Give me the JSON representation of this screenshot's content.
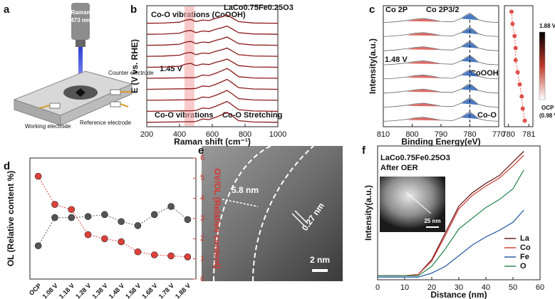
{
  "panel_labels": [
    "a",
    "b",
    "c",
    "d",
    "e",
    "f"
  ],
  "schematic": {
    "laser": [
      "Raman",
      "473 nm"
    ],
    "counter": "Counter electrode",
    "working": "Working electrode",
    "reference": "Reference electrode"
  },
  "micrograph": {
    "shell": "5.8 nm",
    "lattice": "0.27 nm",
    "scale": "2 nm"
  },
  "chart_data": [
    {
      "type": "line",
      "xlabel": "Raman shift (cm⁻¹)",
      "ylabel": "E (V vs. RHE)",
      "annotations": [
        "Co-O vibrations (CoOOH)",
        "LaCo0.75Fe0.25O3",
        "1.45 V",
        "Co-O vibrations",
        "Co-O Stretching"
      ],
      "highlight_x": [
        430,
        490
      ],
      "highlight_color": "#f4a6a6",
      "xlim": [
        200,
        1000
      ],
      "xticks": [
        200,
        400,
        600,
        800,
        1000
      ],
      "ylim": [
        0,
        11
      ],
      "color": "#8b1a1a",
      "x": [
        200,
        300,
        400,
        440,
        470,
        500,
        540,
        580,
        620,
        660,
        690,
        720,
        760,
        850,
        1000
      ],
      "series": [
        {
          "values": [
            0.4,
            0.42,
            0.44,
            0.45,
            0.45,
            0.48,
            0.7,
            0.65,
            0.85,
            1.1,
            1.3,
            1.0,
            0.55,
            0.43,
            0.4
          ]
        },
        {
          "values": [
            1.4,
            1.42,
            1.44,
            1.45,
            1.45,
            1.48,
            1.7,
            1.65,
            1.85,
            2.1,
            2.3,
            2.0,
            1.55,
            1.43,
            1.4
          ]
        },
        {
          "values": [
            2.4,
            2.42,
            2.44,
            2.45,
            2.45,
            2.48,
            2.7,
            2.65,
            2.85,
            3.1,
            3.3,
            3.0,
            2.55,
            2.43,
            2.4
          ]
        },
        {
          "values": [
            3.4,
            3.42,
            3.44,
            3.45,
            3.45,
            3.48,
            3.7,
            3.65,
            3.85,
            4.1,
            4.3,
            4.0,
            3.55,
            3.43,
            3.4
          ]
        },
        {
          "values": [
            4.4,
            4.42,
            4.44,
            4.45,
            4.45,
            4.48,
            4.7,
            4.65,
            4.85,
            5.1,
            5.3,
            5.0,
            4.55,
            4.43,
            4.4
          ]
        },
        {
          "values": [
            5.4,
            5.42,
            5.5,
            5.7,
            5.75,
            5.55,
            5.7,
            5.65,
            5.85,
            6.0,
            6.15,
            5.9,
            5.55,
            5.43,
            5.4
          ]
        },
        {
          "values": [
            6.4,
            6.42,
            6.5,
            6.7,
            6.75,
            6.55,
            6.7,
            6.65,
            6.85,
            7.0,
            7.15,
            6.9,
            6.55,
            6.43,
            6.4
          ]
        },
        {
          "values": [
            7.4,
            7.42,
            7.5,
            7.7,
            7.75,
            7.55,
            7.7,
            7.65,
            7.85,
            8.0,
            8.15,
            7.9,
            7.55,
            7.43,
            7.4
          ]
        },
        {
          "values": [
            8.4,
            8.42,
            8.5,
            8.7,
            8.75,
            8.55,
            8.7,
            8.65,
            8.85,
            9.0,
            9.15,
            8.9,
            8.55,
            8.43,
            8.4
          ]
        },
        {
          "values": [
            9.4,
            9.42,
            9.5,
            9.7,
            9.75,
            9.55,
            9.7,
            9.65,
            9.85,
            10.0,
            10.15,
            9.9,
            9.55,
            9.43,
            9.4
          ]
        }
      ]
    },
    {
      "type": "spectra",
      "xlabel": "Binding Energy(eV)",
      "ylabel": "Intensity(a.u.)",
      "annotations": [
        "Co 2P",
        "Co 2P3/2",
        "1.48 V",
        "CoOOH",
        "Co-O"
      ],
      "xlim": [
        810,
        770
      ],
      "xticks": [
        810,
        800,
        790,
        780,
        770
      ],
      "ylim": [
        0,
        9
      ],
      "color": "#666666",
      "dashed_x": 780,
      "x": [
        810,
        806,
        802,
        799,
        796,
        793,
        790,
        786,
        783,
        781,
        780,
        779,
        777,
        774,
        770
      ],
      "fit_x": [
        [
          802,
          799,
          796,
          793,
          790
        ],
        [
          783,
          781,
          780,
          779,
          777
        ]
      ],
      "fit_colors": [
        "#d9534f",
        "#2b63b8"
      ],
      "series": [
        {
          "values": [
            0.4,
            0.45,
            0.55,
            0.65,
            0.7,
            0.6,
            0.48,
            0.45,
            0.7,
            1.0,
            1.1,
            0.95,
            0.6,
            0.45,
            0.4
          ],
          "fits": [
            [
              0.5,
              0.62,
              0.68,
              0.58,
              0.46
            ],
            [
              0.68,
              0.95,
              1.05,
              0.92,
              0.58
            ]
          ]
        },
        {
          "values": [
            1.45,
            1.5,
            1.6,
            1.7,
            1.75,
            1.65,
            1.53,
            1.5,
            1.75,
            2.05,
            2.15,
            2.0,
            1.65,
            1.5,
            1.45
          ],
          "fits": [
            [
              1.55,
              1.67,
              1.73,
              1.63,
              1.51
            ],
            [
              1.73,
              2.0,
              2.1,
              1.97,
              1.63
            ]
          ]
        },
        {
          "values": [
            2.5,
            2.55,
            2.65,
            2.75,
            2.8,
            2.7,
            2.58,
            2.55,
            2.8,
            3.1,
            3.2,
            3.05,
            2.7,
            2.55,
            2.5
          ],
          "fits": [
            [
              2.6,
              2.72,
              2.78,
              2.68,
              2.56
            ],
            [
              2.78,
              3.05,
              3.15,
              3.02,
              2.68
            ]
          ]
        },
        {
          "values": [
            3.55,
            3.6,
            3.7,
            3.8,
            3.85,
            3.75,
            3.63,
            3.6,
            3.85,
            4.15,
            4.25,
            4.1,
            3.75,
            3.6,
            3.55
          ],
          "fits": [
            [
              3.65,
              3.77,
              3.83,
              3.73,
              3.61
            ],
            [
              3.83,
              4.1,
              4.2,
              4.07,
              3.73
            ]
          ]
        },
        {
          "values": [
            4.6,
            4.65,
            4.75,
            4.85,
            4.9,
            4.8,
            4.68,
            4.65,
            4.9,
            5.2,
            5.3,
            5.15,
            4.8,
            4.65,
            4.6
          ],
          "fits": [
            [
              4.7,
              4.82,
              4.88,
              4.78,
              4.66
            ],
            [
              4.88,
              5.15,
              5.25,
              5.12,
              4.78
            ]
          ]
        },
        {
          "values": [
            5.65,
            5.7,
            5.8,
            5.9,
            5.95,
            5.85,
            5.73,
            5.7,
            5.95,
            6.25,
            6.35,
            6.2,
            5.85,
            5.7,
            5.65
          ],
          "fits": [
            [
              5.75,
              5.87,
              5.93,
              5.83,
              5.71
            ],
            [
              5.93,
              6.2,
              6.3,
              6.17,
              5.83
            ]
          ]
        },
        {
          "values": [
            6.7,
            6.75,
            6.85,
            6.95,
            7.0,
            6.9,
            6.78,
            6.75,
            7.0,
            7.3,
            7.4,
            7.25,
            6.9,
            6.75,
            6.7
          ],
          "fits": [
            [
              6.8,
              6.92,
              6.98,
              6.88,
              6.76
            ],
            [
              6.98,
              7.25,
              7.35,
              7.22,
              6.88
            ]
          ]
        },
        {
          "values": [
            7.75,
            7.8,
            7.9,
            8.0,
            8.05,
            7.95,
            7.83,
            7.8,
            8.05,
            8.35,
            8.45,
            8.3,
            7.95,
            7.8,
            7.75
          ],
          "fits": [
            [
              7.85,
              7.97,
              8.03,
              7.93,
              7.81
            ],
            [
              8.03,
              8.3,
              8.4,
              8.27,
              7.93
            ]
          ]
        }
      ]
    },
    {
      "type": "scatter",
      "xlim": [
        779.8,
        781.2
      ],
      "xticks": [
        780,
        781
      ],
      "ylim": [
        0.5,
        10.5
      ],
      "color": "#e0504a",
      "x": [
        780.15,
        780.2,
        780.3,
        780.35,
        780.35,
        780.45,
        780.55,
        780.65,
        780.7,
        780.8
      ],
      "y": [
        10,
        9,
        8,
        7,
        6,
        5,
        4,
        3,
        2,
        1
      ],
      "colorbar": {
        "colors": [
          "#000000",
          "#c0392b",
          "#ffffff"
        ],
        "labels": [
          "1.88 V",
          "OCP",
          "(0.98 V)"
        ]
      }
    },
    {
      "type": "line",
      "ylabel": "OL (Relative content %)",
      "y2label": "OV/OL (Relative content)",
      "categories": [
        "OCP",
        "1.08 V",
        "1.18 V",
        "1.28 V",
        "1.38 V",
        "1.48 V",
        "1.58 V",
        "1.68 V",
        "1.78 V",
        "1.88 V"
      ],
      "ylim": [
        0,
        6
      ],
      "y2lim": [
        0,
        6
      ],
      "y2ticks": [
        0,
        1,
        2,
        3,
        4,
        5,
        6
      ],
      "y2color": "#d9362f",
      "markers": true,
      "series": [
        {
          "color": "#555555",
          "values": [
            1.65,
            3.05,
            3.05,
            3.1,
            3.2,
            2.85,
            2.65,
            3.2,
            3.6,
            2.95
          ]
        },
        {
          "color": "#e0403a",
          "axis": "y2",
          "values": [
            5.1,
            3.7,
            3.45,
            2.2,
            2.0,
            1.85,
            1.35,
            1.2,
            1.15,
            1.1
          ]
        }
      ]
    },
    {
      "type": "line",
      "xlabel": "Distance (nm)",
      "ylabel": "Intensity(a.u.)",
      "annotations": [
        "LaCo0.75Fe0.25O3",
        "After OER",
        "25 nm"
      ],
      "xlim": [
        0,
        60
      ],
      "xticks": [
        0,
        10,
        20,
        30,
        40,
        50,
        60
      ],
      "ylim": [
        0,
        10
      ],
      "legend": "lower right",
      "x": [
        0,
        5,
        10,
        15,
        20,
        25,
        30,
        35,
        40,
        45,
        50,
        54
      ],
      "series": [
        {
          "name": "La",
          "color": "#6b1d1d",
          "values": [
            0.3,
            0.3,
            0.3,
            0.4,
            1.5,
            3.5,
            5.5,
            6.5,
            7.2,
            7.8,
            8.8,
            9.6
          ]
        },
        {
          "name": "Co",
          "color": "#d0453c",
          "values": [
            0.3,
            0.3,
            0.3,
            0.4,
            1.4,
            3.3,
            5.3,
            6.3,
            7.0,
            7.6,
            8.5,
            9.3
          ]
        },
        {
          "name": "Fe",
          "color": "#2e5fa8",
          "values": [
            0.2,
            0.2,
            0.2,
            0.2,
            0.5,
            1.0,
            1.8,
            2.6,
            3.2,
            3.7,
            4.3,
            5.2
          ]
        },
        {
          "name": "O",
          "color": "#2e8b57",
          "values": [
            0.3,
            0.3,
            0.3,
            0.3,
            1.0,
            2.3,
            3.8,
            4.6,
            5.4,
            6.0,
            6.8,
            8.2
          ]
        }
      ]
    }
  ]
}
